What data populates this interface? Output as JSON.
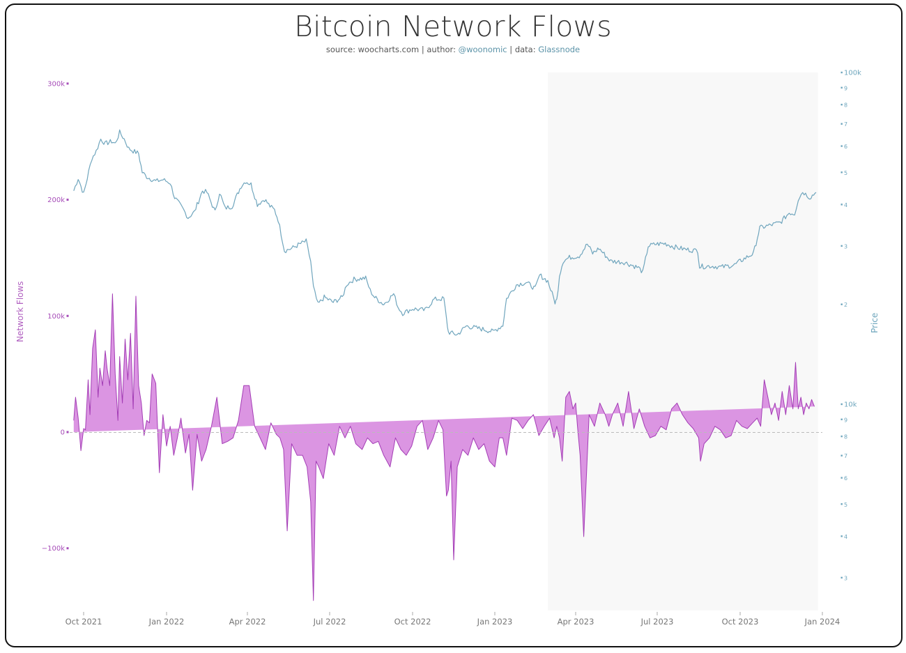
{
  "header": {
    "title": "Bitcoin Network Flows",
    "source_prefix": "source: woocharts.com | author: ",
    "author": "@woonomic",
    "data_prefix": " | data: ",
    "data_source": "Glassnode"
  },
  "colors": {
    "flows_fill": "#d98fe0",
    "flows_line": "#a33cb5",
    "price_line": "#6fa5bd",
    "left_axis": "#a64cb8",
    "right_axis": "#6ea6bd",
    "shade": "#f8f8f8",
    "zero_line": "#bbbbbb"
  },
  "chart_data": {
    "type": "line",
    "title": "Bitcoin Network Flows",
    "subtitle": "source: woocharts.com | author: @woonomic | data: Glassnode",
    "xlabel": "",
    "ylabel_left": "Network Flows",
    "ylabel_right": "Price",
    "x_ticks": [
      "Oct 2021",
      "Jan 2022",
      "Apr 2022",
      "Jul 2022",
      "Oct 2022",
      "Jan 2023",
      "Apr 2023",
      "Jul 2023",
      "Oct 2023",
      "Jan 2024"
    ],
    "left_ticks": [
      "300k",
      "200k",
      "100k",
      "0",
      "−100k"
    ],
    "right_ticks_upper": [
      "100k",
      "9",
      "8",
      "7",
      "6",
      "5",
      "4",
      "3",
      "2"
    ],
    "right_ticks_lower": [
      "10k",
      "9",
      "8",
      "7",
      "6",
      "5",
      "4",
      "3"
    ],
    "left_ylim": [
      -145000,
      310000
    ],
    "right_scale": "log",
    "right_ylim": [
      2500,
      100000
    ],
    "shaded_region": {
      "from": "2023-03-01",
      "to": "2023-12-27"
    },
    "grid": false,
    "legend": "none",
    "series": [
      {
        "name": "Price",
        "axis": "right",
        "style": "line",
        "dates": [
          "2021-09-20",
          "2021-09-25",
          "2021-10-01",
          "2021-10-05",
          "2021-10-10",
          "2021-10-15",
          "2021-10-20",
          "2021-10-25",
          "2021-11-01",
          "2021-11-05",
          "2021-11-10",
          "2021-11-15",
          "2021-11-20",
          "2021-11-25",
          "2021-12-01",
          "2021-12-05",
          "2021-12-10",
          "2021-12-20",
          "2021-12-28",
          "2022-01-05",
          "2022-01-10",
          "2022-01-20",
          "2022-01-25",
          "2022-02-01",
          "2022-02-10",
          "2022-02-15",
          "2022-02-24",
          "2022-03-01",
          "2022-03-07",
          "2022-03-15",
          "2022-03-25",
          "2022-03-30",
          "2022-04-05",
          "2022-04-12",
          "2022-04-20",
          "2022-04-26",
          "2022-05-01",
          "2022-05-05",
          "2022-05-10",
          "2022-05-12",
          "2022-05-20",
          "2022-05-30",
          "2022-06-05",
          "2022-06-10",
          "2022-06-13",
          "2022-06-18",
          "2022-06-25",
          "2022-07-05",
          "2022-07-15",
          "2022-07-20",
          "2022-07-28",
          "2022-08-10",
          "2022-08-15",
          "2022-08-20",
          "2022-08-30",
          "2022-09-10",
          "2022-09-15",
          "2022-09-20",
          "2022-10-01",
          "2022-10-15",
          "2022-10-25",
          "2022-11-05",
          "2022-11-08",
          "2022-11-10",
          "2022-11-20",
          "2022-11-30",
          "2022-12-10",
          "2022-12-20",
          "2022-12-30",
          "2023-01-10",
          "2023-01-14",
          "2023-01-25",
          "2023-02-05",
          "2023-02-15",
          "2023-02-20",
          "2023-03-01",
          "2023-03-09",
          "2023-03-11",
          "2023-03-14",
          "2023-03-18",
          "2023-03-25",
          "2023-04-05",
          "2023-04-14",
          "2023-04-20",
          "2023-04-27",
          "2023-05-10",
          "2023-05-25",
          "2023-06-10",
          "2023-06-15",
          "2023-06-21",
          "2023-06-30",
          "2023-07-10",
          "2023-07-20",
          "2023-08-01",
          "2023-08-15",
          "2023-08-17",
          "2023-08-30",
          "2023-09-10",
          "2023-09-25",
          "2023-10-01",
          "2023-10-16",
          "2023-10-23",
          "2023-11-01",
          "2023-11-15",
          "2023-11-25",
          "2023-12-01",
          "2023-12-05",
          "2023-12-10",
          "2023-12-18",
          "2023-12-25"
        ],
        "values": [
          44000,
          48000,
          43000,
          48000,
          55000,
          58000,
          63000,
          61000,
          62000,
          61000,
          66000,
          63000,
          59000,
          58000,
          57000,
          50000,
          48500,
          47000,
          47500,
          46500,
          42000,
          38500,
          36500,
          38000,
          44000,
          43500,
          38000,
          43500,
          39000,
          39500,
          45500,
          47000,
          46000,
          40000,
          41500,
          39500,
          38500,
          36000,
          31000,
          29000,
          29500,
          30500,
          31000,
          27000,
          22500,
          20000,
          21000,
          20300,
          21000,
          23000,
          23800,
          24000,
          22000,
          21000,
          20000,
          21500,
          19600,
          18800,
          19400,
          19200,
          20700,
          20800,
          18000,
          16500,
          16200,
          17200,
          17000,
          16800,
          16550,
          17300,
          20800,
          22900,
          23300,
          22300,
          24500,
          23500,
          20300,
          20600,
          24500,
          27000,
          27700,
          28000,
          30400,
          28500,
          29500,
          27000,
          26800,
          25800,
          25000,
          30000,
          30400,
          30500,
          29800,
          29300,
          29000,
          26000,
          26100,
          25900,
          26300,
          27000,
          28500,
          34000,
          34500,
          35300,
          37800,
          37500,
          41500,
          43700,
          42000,
          43500,
          42500
        ],
        "y_range_hint": "log scale; 100k top tick, 10k lower tick"
      },
      {
        "name": "Network Flows",
        "axis": "left",
        "style": "area",
        "dates": [
          "2021-09-20",
          "2021-09-22",
          "2021-09-25",
          "2021-09-28",
          "2021-10-01",
          "2021-10-03",
          "2021-10-06",
          "2021-10-08",
          "2021-10-11",
          "2021-10-14",
          "2021-10-17",
          "2021-10-19",
          "2021-10-22",
          "2021-10-25",
          "2021-10-27",
          "2021-10-30",
          "2021-11-02",
          "2021-11-05",
          "2021-11-08",
          "2021-11-10",
          "2021-11-13",
          "2021-11-16",
          "2021-11-19",
          "2021-11-22",
          "2021-11-25",
          "2021-11-28",
          "2021-12-01",
          "2021-12-04",
          "2021-12-07",
          "2021-12-10",
          "2021-12-13",
          "2021-12-16",
          "2021-12-20",
          "2021-12-24",
          "2021-12-28",
          "2022-01-01",
          "2022-01-05",
          "2022-01-09",
          "2022-01-13",
          "2022-01-17",
          "2022-01-22",
          "2022-01-26",
          "2022-01-30",
          "2022-02-04",
          "2022-02-09",
          "2022-02-14",
          "2022-02-20",
          "2022-02-26",
          "2022-03-04",
          "2022-03-10",
          "2022-03-16",
          "2022-03-22",
          "2022-03-28",
          "2022-04-03",
          "2022-04-09",
          "2022-04-15",
          "2022-04-21",
          "2022-04-27",
          "2022-05-03",
          "2022-05-07",
          "2022-05-11",
          "2022-05-15",
          "2022-05-20",
          "2022-05-26",
          "2022-06-01",
          "2022-06-06",
          "2022-06-10",
          "2022-06-13",
          "2022-06-16",
          "2022-06-19",
          "2022-06-24",
          "2022-06-30",
          "2022-07-06",
          "2022-07-12",
          "2022-07-18",
          "2022-07-24",
          "2022-07-30",
          "2022-08-06",
          "2022-08-12",
          "2022-08-18",
          "2022-08-24",
          "2022-08-30",
          "2022-09-06",
          "2022-09-12",
          "2022-09-18",
          "2022-09-24",
          "2022-09-30",
          "2022-10-06",
          "2022-10-12",
          "2022-10-18",
          "2022-10-24",
          "2022-10-30",
          "2022-11-04",
          "2022-11-08",
          "2022-11-10",
          "2022-11-13",
          "2022-11-16",
          "2022-11-20",
          "2022-11-26",
          "2022-12-02",
          "2022-12-08",
          "2022-12-14",
          "2022-12-20",
          "2022-12-26",
          "2023-01-01",
          "2023-01-06",
          "2023-01-10",
          "2023-01-14",
          "2023-01-20",
          "2023-01-26",
          "2023-02-01",
          "2023-02-07",
          "2023-02-13",
          "2023-02-19",
          "2023-02-25",
          "2023-03-03",
          "2023-03-08",
          "2023-03-11",
          "2023-03-14",
          "2023-03-17",
          "2023-03-21",
          "2023-03-25",
          "2023-03-29",
          "2023-04-01",
          "2023-04-03",
          "2023-04-06",
          "2023-04-10",
          "2023-04-16",
          "2023-04-22",
          "2023-04-28",
          "2023-05-04",
          "2023-05-08",
          "2023-05-12",
          "2023-05-18",
          "2023-05-24",
          "2023-05-30",
          "2023-06-05",
          "2023-06-11",
          "2023-06-17",
          "2023-06-23",
          "2023-06-29",
          "2023-07-05",
          "2023-07-11",
          "2023-07-17",
          "2023-07-23",
          "2023-07-29",
          "2023-08-04",
          "2023-08-10",
          "2023-08-16",
          "2023-08-18",
          "2023-08-22",
          "2023-08-28",
          "2023-09-03",
          "2023-09-09",
          "2023-09-15",
          "2023-09-21",
          "2023-09-27",
          "2023-10-03",
          "2023-10-09",
          "2023-10-15",
          "2023-10-20",
          "2023-10-24",
          "2023-10-28",
          "2023-11-01",
          "2023-11-05",
          "2023-11-09",
          "2023-11-13",
          "2023-11-17",
          "2023-11-21",
          "2023-11-25",
          "2023-11-29",
          "2023-12-02",
          "2023-12-05",
          "2023-12-08",
          "2023-12-11",
          "2023-12-14",
          "2023-12-17",
          "2023-12-20",
          "2023-12-23",
          "2023-12-26"
        ],
        "values": [
          10000,
          30000,
          12000,
          -16000,
          3000,
          2000,
          45000,
          15000,
          72000,
          88000,
          30000,
          55000,
          40000,
          70000,
          55000,
          40000,
          119000,
          50000,
          10000,
          65000,
          25000,
          80000,
          45000,
          85000,
          20000,
          117000,
          40000,
          25000,
          -3000,
          10000,
          8000,
          50000,
          42000,
          -35000,
          15000,
          -12000,
          5000,
          -20000,
          -5000,
          12000,
          -18000,
          -2000,
          -50000,
          -2000,
          -25000,
          -15000,
          5000,
          30000,
          -10000,
          -8000,
          -5000,
          10000,
          40000,
          40000,
          5000,
          -5000,
          -15000,
          8000,
          -2000,
          -5000,
          -15000,
          -85000,
          -10000,
          -20000,
          -20000,
          -30000,
          -60000,
          -145000,
          -25000,
          -30000,
          -40000,
          -10000,
          -20000,
          5000,
          -5000,
          5000,
          -10000,
          -15000,
          -5000,
          -10000,
          -8000,
          -20000,
          -30000,
          -5000,
          -15000,
          -20000,
          -12000,
          5000,
          10000,
          -15000,
          -5000,
          10000,
          2000,
          -55000,
          -50000,
          -25000,
          -110000,
          -30000,
          -15000,
          -20000,
          -5000,
          -15000,
          -10000,
          -25000,
          -30000,
          -5000,
          -5000,
          -20000,
          12000,
          10000,
          3000,
          10000,
          15000,
          -3000,
          5000,
          12000,
          -5000,
          5000,
          -5000,
          -25000,
          30000,
          35000,
          20000,
          25000,
          5000,
          -20000,
          -90000,
          15000,
          5000,
          25000,
          15000,
          5000,
          15000,
          25000,
          5000,
          35000,
          3000,
          20000,
          5000,
          -5000,
          -3000,
          5000,
          2000,
          20000,
          25000,
          15000,
          8000,
          3000,
          -5000,
          -25000,
          -10000,
          -5000,
          5000,
          2000,
          -5000,
          -3000,
          10000,
          5000,
          3000,
          8000,
          12000,
          5000,
          45000,
          30000,
          15000,
          25000,
          10000,
          35000,
          15000,
          40000,
          20000,
          60000,
          20000,
          30000,
          15000,
          25000,
          20000,
          28000,
          22000
        ],
        "ylim": [
          -145000,
          310000
        ]
      }
    ]
  }
}
